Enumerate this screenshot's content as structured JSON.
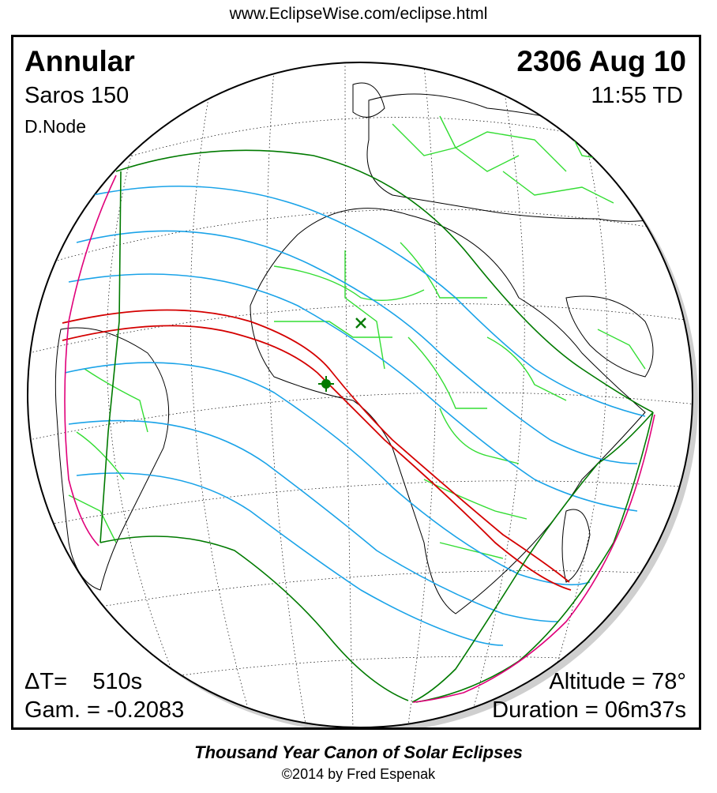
{
  "header": {
    "url": "www.EclipseWise.com/eclipse.html"
  },
  "eclipse": {
    "type": "Annular",
    "saros": "Saros 150",
    "node": "D.Node",
    "date": "2306 Aug 10",
    "time": "11:55 TD",
    "delta_t": "ΔT=    510s",
    "gamma": "Gam. = -0.2083",
    "altitude": "Altitude = 78°",
    "duration": "Duration = 06m37s"
  },
  "footer": {
    "title": "Thousand Year Canon of Solar Eclipses",
    "copyright": "©2014 by Fred Espenak"
  },
  "colors": {
    "central_path": "#d40000",
    "limits": "#007a00",
    "magnitude_lines": "#1aa3e8",
    "rise_set": "#e0007a",
    "borders": "#33dd33",
    "coastline": "#000000",
    "graticule": "#000000"
  },
  "map_markers": {
    "greatest_eclipse_symbol": "star",
    "subsolar_point_symbol": "x"
  }
}
